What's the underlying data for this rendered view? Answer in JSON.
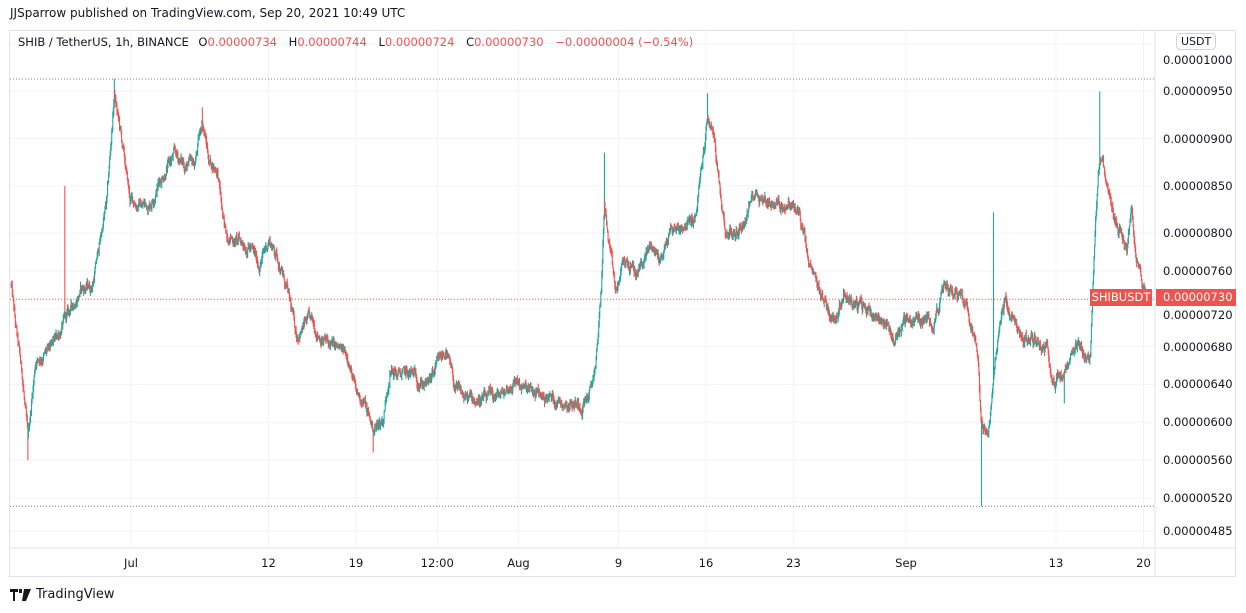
{
  "header": {
    "published": "JJSparrow published on TradingView.com, Sep 20, 2021 10:49 UTC"
  },
  "legend": {
    "symbol": "SHIB / TetherUS, 1h, BINANCE",
    "o_label": "O",
    "o": "0.00000734",
    "h_label": "H",
    "h": "0.00000744",
    "l_label": "L",
    "l": "0.00000724",
    "c_label": "C",
    "c": "0.00000730",
    "change": "−0.00000004 (−0.54%)"
  },
  "price_axis": {
    "currency": "USDT",
    "symbol_tag": "SHIBUSDT",
    "last_price_label": "0.00000730",
    "ticks": [
      {
        "label": "0.00001000",
        "value": 1e-05
      },
      {
        "label": "0.00000950",
        "value": 9.5e-06
      },
      {
        "label": "0.00000900",
        "value": 9e-06
      },
      {
        "label": "0.00000850",
        "value": 8.5e-06
      },
      {
        "label": "0.00000800",
        "value": 8e-06
      },
      {
        "label": "0.00000760",
        "value": 7.6e-06
      },
      {
        "label": "0.00000720",
        "value": 7.2e-06
      },
      {
        "label": "0.00000680",
        "value": 6.8e-06
      },
      {
        "label": "0.00000640",
        "value": 6.4e-06
      },
      {
        "label": "0.00000600",
        "value": 6e-06
      },
      {
        "label": "0.00000560",
        "value": 5.6e-06
      },
      {
        "label": "0.00000520",
        "value": 5.2e-06
      },
      {
        "label": "0.00000485",
        "value": 4.85e-06
      }
    ]
  },
  "time_axis": {
    "ticks": [
      {
        "label": "Jul",
        "date": "2021-07-01T00:00"
      },
      {
        "label": "12",
        "date": "2021-07-12T00:00"
      },
      {
        "label": "19",
        "date": "2021-07-19T00:00"
      },
      {
        "label": "12:00",
        "date": "2021-07-25T12:00"
      },
      {
        "label": "Aug",
        "date": "2021-08-01T00:00"
      },
      {
        "label": "9",
        "date": "2021-08-09T00:00"
      },
      {
        "label": "16",
        "date": "2021-08-16T00:00"
      },
      {
        "label": "23",
        "date": "2021-08-23T00:00"
      },
      {
        "label": "Sep",
        "date": "2021-09-01T00:00"
      },
      {
        "label": "13",
        "date": "2021-09-13T00:00"
      },
      {
        "label": "20",
        "date": "2021-09-20T00:00"
      }
    ]
  },
  "footer": {
    "brand": "TradingView",
    "logo_icon": "tradingview-logo-icon"
  },
  "colors": {
    "up": "#26a69a",
    "down": "#ef5350",
    "grid": "#f0f3fa",
    "text": "#131722"
  },
  "chart_data": {
    "type": "candlestick",
    "symbol": "SHIB / TetherUS",
    "interval": "1h",
    "exchange": "BINANCE",
    "ylim": [
      4.75e-06,
      1.01e-05
    ],
    "xlim": [
      "2021-06-21T10:00",
      "2021-09-20T10:00"
    ],
    "grid": true,
    "range_high": 9.63e-06,
    "range_low": 5.11e-06,
    "last_price": 7.3e-06,
    "approx_close_path": [
      [
        "2021-06-21T10:00",
        7.45e-06
      ],
      [
        "2021-06-21T19:00",
        6.98e-06
      ],
      [
        "2021-06-22T08:00",
        6.45e-06
      ],
      [
        "2021-06-22T18:00",
        5.81e-06
      ],
      [
        "2021-06-23T09:00",
        6.66e-06
      ],
      [
        "2021-06-24T14:00",
        6.76e-06
      ],
      [
        "2021-06-25T18:00",
        7.08e-06
      ],
      [
        "2021-06-26T23:00",
        7.4e-06
      ],
      [
        "2021-06-27T22:00",
        7.45e-06
      ],
      [
        "2021-06-28T13:00",
        7.93e-06
      ],
      [
        "2021-06-29T02:00",
        8.35e-06
      ],
      [
        "2021-06-29T16:00",
        9.46e-06
      ],
      [
        "2021-06-30T03:00",
        9.09e-06
      ],
      [
        "2021-06-30T22:00",
        8.35e-06
      ],
      [
        "2021-07-01T17:00",
        8.3e-06
      ],
      [
        "2021-07-02T12:00",
        8.3e-06
      ],
      [
        "2021-07-03T07:00",
        8.56e-06
      ],
      [
        "2021-07-04T12:00",
        8.83e-06
      ],
      [
        "2021-07-05T07:00",
        8.72e-06
      ],
      [
        "2021-07-06T02:00",
        8.72e-06
      ],
      [
        "2021-07-06T17:00",
        9.2e-06
      ],
      [
        "2021-07-07T06:00",
        8.77e-06
      ],
      [
        "2021-07-07T22:00",
        8.67e-06
      ],
      [
        "2021-07-08T11:00",
        8.03e-06
      ],
      [
        "2021-07-09T06:00",
        7.93e-06
      ],
      [
        "2021-07-10T11:00",
        7.87e-06
      ],
      [
        "2021-07-11T06:00",
        7.66e-06
      ],
      [
        "2021-07-12T01:00",
        7.93e-06
      ],
      [
        "2021-07-12T16:00",
        7.77e-06
      ],
      [
        "2021-07-13T11:00",
        7.4e-06
      ],
      [
        "2021-07-14T06:00",
        6.92e-06
      ],
      [
        "2021-07-15T05:00",
        7.08e-06
      ],
      [
        "2021-07-16T10:00",
        6.87e-06
      ],
      [
        "2021-07-17T14:00",
        6.76e-06
      ],
      [
        "2021-07-18T09:00",
        6.71e-06
      ],
      [
        "2021-07-19T00:00",
        6.29e-06
      ],
      [
        "2021-07-19T14:00",
        6.24e-06
      ],
      [
        "2021-07-20T09:00",
        5.92e-06
      ],
      [
        "2021-07-21T04:00",
        6.03e-06
      ],
      [
        "2021-07-21T17:00",
        6.55e-06
      ],
      [
        "2021-07-22T08:00",
        6.5e-06
      ],
      [
        "2021-07-23T13:00",
        6.5e-06
      ],
      [
        "2021-07-24T18:00",
        6.39e-06
      ],
      [
        "2021-07-26T04:00",
        6.76e-06
      ],
      [
        "2021-07-26T23:00",
        6.34e-06
      ],
      [
        "2021-07-27T22:00",
        6.24e-06
      ],
      [
        "2021-07-29T12:00",
        6.24e-06
      ],
      [
        "2021-07-30T16:00",
        6.29e-06
      ],
      [
        "2021-07-31T21:00",
        6.45e-06
      ],
      [
        "2021-08-01T12:00",
        6.34e-06
      ],
      [
        "2021-08-02T11:00",
        6.29e-06
      ],
      [
        "2021-08-04T01:00",
        6.24e-06
      ],
      [
        "2021-08-06T01:00",
        6.19e-06
      ],
      [
        "2021-08-06T20:00",
        6.34e-06
      ],
      [
        "2021-08-07T05:00",
        6.66e-06
      ],
      [
        "2021-08-07T15:00",
        7.4e-06
      ],
      [
        "2021-08-07T21:00",
        8.35e-06
      ],
      [
        "2021-08-08T04:00",
        7.93e-06
      ],
      [
        "2021-08-08T19:00",
        7.35e-06
      ],
      [
        "2021-08-09T11:00",
        7.72e-06
      ],
      [
        "2021-08-10T10:00",
        7.56e-06
      ],
      [
        "2021-08-11T14:00",
        7.87e-06
      ],
      [
        "2021-08-12T09:00",
        7.72e-06
      ],
      [
        "2021-08-13T04:00",
        8.03e-06
      ],
      [
        "2021-08-14T05:00",
        8.09e-06
      ],
      [
        "2021-08-15T04:00",
        8.14e-06
      ],
      [
        "2021-08-15T13:00",
        8.56e-06
      ],
      [
        "2021-08-16T03:00",
        9.2e-06
      ],
      [
        "2021-08-16T14:00",
        9.09e-06
      ],
      [
        "2021-08-16T23:00",
        8.56e-06
      ],
      [
        "2021-08-17T13:00",
        8.03e-06
      ],
      [
        "2021-08-18T08:00",
        7.98e-06
      ],
      [
        "2021-08-19T03:00",
        8.14e-06
      ],
      [
        "2021-08-19T22:00",
        8.46e-06
      ],
      [
        "2021-08-20T17:00",
        8.35e-06
      ],
      [
        "2021-08-21T22:00",
        8.3e-06
      ],
      [
        "2021-08-22T17:00",
        8.3e-06
      ],
      [
        "2021-08-23T12:00",
        8.19e-06
      ],
      [
        "2021-08-23T21:00",
        7.93e-06
      ],
      [
        "2021-08-24T07:00",
        7.61e-06
      ],
      [
        "2021-08-24T16:00",
        7.5e-06
      ],
      [
        "2021-08-25T11:00",
        7.29e-06
      ],
      [
        "2021-08-26T06:00",
        7.08e-06
      ],
      [
        "2021-08-27T01:00",
        7.4e-06
      ],
      [
        "2021-08-27T21:00",
        7.24e-06
      ],
      [
        "2021-08-29T01:00",
        7.19e-06
      ],
      [
        "2021-08-30T06:00",
        7.08e-06
      ],
      [
        "2021-08-31T01:00",
        6.87e-06
      ],
      [
        "2021-08-31T20:00",
        7.08e-06
      ],
      [
        "2021-09-02T00:00",
        7.08e-06
      ],
      [
        "2021-09-03T05:00",
        7.08e-06
      ],
      [
        "2021-09-04T00:00",
        7.4e-06
      ],
      [
        "2021-09-04T19:00",
        7.4e-06
      ],
      [
        "2021-09-05T14:00",
        7.35e-06
      ],
      [
        "2021-09-06T09:00",
        7.03e-06
      ],
      [
        "2021-09-06T19:00",
        6.71e-06
      ],
      [
        "2021-09-07T00:00",
        6.03e-06
      ],
      [
        "2021-09-07T14:00",
        5.81e-06
      ],
      [
        "2021-09-07T23:00",
        6.34e-06
      ],
      [
        "2021-09-08T09:00",
        6.98e-06
      ],
      [
        "2021-09-08T22:00",
        7.29e-06
      ],
      [
        "2021-09-09T13:00",
        7.08e-06
      ],
      [
        "2021-09-10T08:00",
        6.87e-06
      ],
      [
        "2021-09-11T13:00",
        6.87e-06
      ],
      [
        "2021-09-12T08:00",
        6.76e-06
      ],
      [
        "2021-09-12T21:00",
        6.45e-06
      ],
      [
        "2021-09-13T16:00",
        6.5e-06
      ],
      [
        "2021-09-14T17:00",
        6.76e-06
      ],
      [
        "2021-09-15T18:00",
        6.66e-06
      ],
      [
        "2021-09-16T01:00",
        7.72e-06
      ],
      [
        "2021-09-16T09:00",
        8.67e-06
      ],
      [
        "2021-09-16T17:00",
        8.88e-06
      ],
      [
        "2021-09-17T02:00",
        8.46e-06
      ],
      [
        "2021-09-17T12:00",
        8.25e-06
      ],
      [
        "2021-09-18T03:00",
        8.03e-06
      ],
      [
        "2021-09-18T16:00",
        7.82e-06
      ],
      [
        "2021-09-19T02:00",
        8.25e-06
      ],
      [
        "2021-09-19T10:00",
        7.72e-06
      ],
      [
        "2021-09-19T22:00",
        7.45e-06
      ],
      [
        "2021-09-20T10:00",
        7.3e-06
      ]
    ],
    "wick_extremes": [
      {
        "date": "2021-06-22T18:00",
        "low": 5.6e-06
      },
      {
        "date": "2021-06-25T17:00",
        "high": 8.5e-06
      },
      {
        "date": "2021-06-29T16:00",
        "high": 9.63e-06
      },
      {
        "date": "2021-07-06T17:00",
        "high": 9.33e-06
      },
      {
        "date": "2021-07-20T09:00",
        "low": 5.68e-06
      },
      {
        "date": "2021-08-07T21:00",
        "high": 8.85e-06
      },
      {
        "date": "2021-08-16T03:00",
        "high": 9.48e-06
      },
      {
        "date": "2021-09-07T01:00",
        "low": 5.11e-06
      },
      {
        "date": "2021-09-08T00:00",
        "high": 8.22e-06
      },
      {
        "date": "2021-09-13T16:00",
        "low": 6.2e-06
      },
      {
        "date": "2021-09-16T12:00",
        "high": 9.5e-06
      }
    ]
  }
}
